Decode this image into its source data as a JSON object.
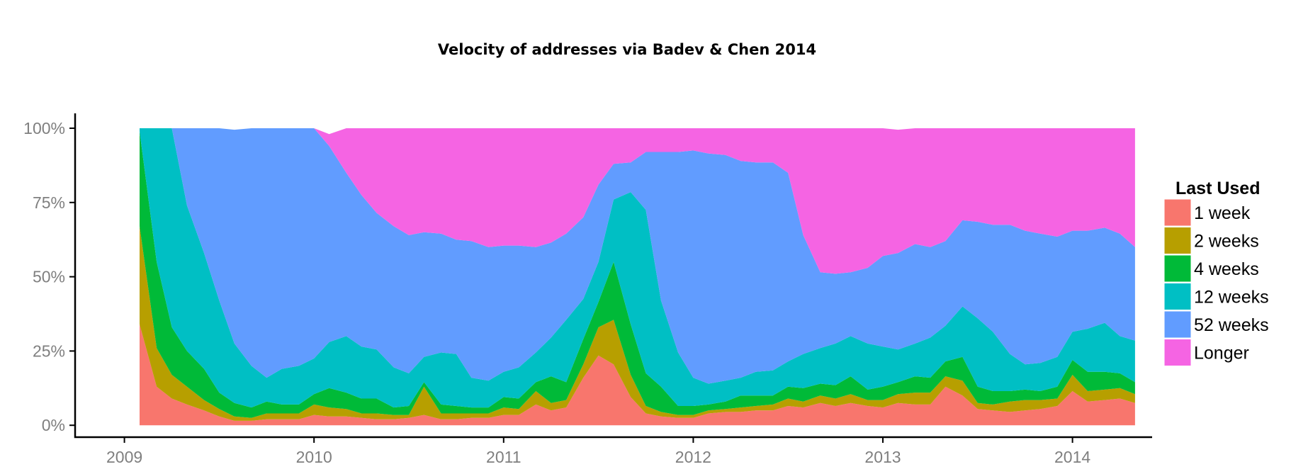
{
  "chart_data": {
    "type": "area",
    "title": "Velocity of addresses via Badev & Chen 2014",
    "xlabel": "",
    "ylabel": "",
    "x_ticks": [
      "2009",
      "2010",
      "2011",
      "2012",
      "2013",
      "2014"
    ],
    "y_ticks": [
      "0%",
      "25%",
      "50%",
      "75%",
      "100%"
    ],
    "xlim": [
      2008.74,
      2014.42
    ],
    "ylim": [
      -0.04,
      1.05
    ],
    "grid": false,
    "legend": {
      "title": "Last Used",
      "position": "right"
    },
    "colors": {
      "1 week": "#f8766d",
      "2 weeks": "#b79f00",
      "4 weeks": "#00ba38",
      "12 weeks": "#00bfc4",
      "52 weeks": "#619cff",
      "Longer": "#f564e3"
    },
    "x": [
      2009.08,
      2009.17,
      2009.25,
      2009.33,
      2009.42,
      2009.5,
      2009.58,
      2009.67,
      2009.75,
      2009.83,
      2009.92,
      2010.0,
      2010.08,
      2010.17,
      2010.25,
      2010.33,
      2010.42,
      2010.5,
      2010.58,
      2010.67,
      2010.75,
      2010.83,
      2010.92,
      2011.0,
      2011.08,
      2011.17,
      2011.25,
      2011.33,
      2011.42,
      2011.5,
      2011.58,
      2011.67,
      2011.75,
      2011.83,
      2011.92,
      2012.0,
      2012.08,
      2012.17,
      2012.25,
      2012.33,
      2012.42,
      2012.5,
      2012.58,
      2012.67,
      2012.75,
      2012.83,
      2012.92,
      2013.0,
      2013.08,
      2013.17,
      2013.25,
      2013.33,
      2013.42,
      2013.5,
      2013.58,
      2013.67,
      2013.75,
      2013.83,
      2013.92,
      2014.0,
      2014.08,
      2014.17,
      2014.25,
      2014.33
    ],
    "series": [
      {
        "name": "1 week",
        "values": [
          0.34,
          0.13,
          0.09,
          0.07,
          0.05,
          0.03,
          0.015,
          0.015,
          0.02,
          0.02,
          0.02,
          0.035,
          0.03,
          0.03,
          0.025,
          0.02,
          0.02,
          0.025,
          0.035,
          0.02,
          0.02,
          0.025,
          0.025,
          0.035,
          0.035,
          0.07,
          0.05,
          0.06,
          0.16,
          0.235,
          0.205,
          0.095,
          0.04,
          0.03,
          0.025,
          0.025,
          0.04,
          0.045,
          0.045,
          0.05,
          0.05,
          0.065,
          0.06,
          0.075,
          0.065,
          0.075,
          0.065,
          0.06,
          0.075,
          0.07,
          0.07,
          0.13,
          0.1,
          0.055,
          0.05,
          0.045,
          0.05,
          0.055,
          0.065,
          0.115,
          0.08,
          0.085,
          0.09,
          0.075
        ]
      },
      {
        "name": "2 weeks",
        "values": [
          0.33,
          0.13,
          0.08,
          0.06,
          0.035,
          0.025,
          0.015,
          0.01,
          0.02,
          0.02,
          0.02,
          0.035,
          0.03,
          0.025,
          0.015,
          0.02,
          0.015,
          0.01,
          0.095,
          0.02,
          0.02,
          0.015,
          0.015,
          0.025,
          0.02,
          0.045,
          0.025,
          0.025,
          0.045,
          0.095,
          0.15,
          0.075,
          0.025,
          0.015,
          0.01,
          0.01,
          0.01,
          0.01,
          0.015,
          0.015,
          0.02,
          0.025,
          0.02,
          0.025,
          0.025,
          0.03,
          0.02,
          0.025,
          0.03,
          0.04,
          0.04,
          0.035,
          0.05,
          0.02,
          0.02,
          0.035,
          0.035,
          0.03,
          0.025,
          0.055,
          0.035,
          0.035,
          0.035,
          0.03
        ]
      },
      {
        "name": "4 weeks",
        "values": [
          0.32,
          0.29,
          0.16,
          0.12,
          0.105,
          0.055,
          0.045,
          0.035,
          0.04,
          0.03,
          0.03,
          0.035,
          0.065,
          0.055,
          0.05,
          0.05,
          0.025,
          0.03,
          0.015,
          0.03,
          0.025,
          0.02,
          0.02,
          0.035,
          0.035,
          0.03,
          0.09,
          0.06,
          0.085,
          0.085,
          0.195,
          0.17,
          0.11,
          0.085,
          0.03,
          0.03,
          0.02,
          0.025,
          0.04,
          0.035,
          0.03,
          0.04,
          0.045,
          0.04,
          0.045,
          0.06,
          0.035,
          0.045,
          0.04,
          0.055,
          0.05,
          0.05,
          0.08,
          0.055,
          0.045,
          0.035,
          0.035,
          0.03,
          0.04,
          0.05,
          0.065,
          0.06,
          0.05,
          0.04
        ]
      },
      {
        "name": "12 weeks",
        "values": [
          0.01,
          0.45,
          0.67,
          0.49,
          0.39,
          0.31,
          0.2,
          0.14,
          0.08,
          0.12,
          0.13,
          0.12,
          0.155,
          0.19,
          0.175,
          0.165,
          0.135,
          0.11,
          0.085,
          0.175,
          0.175,
          0.1,
          0.09,
          0.085,
          0.105,
          0.1,
          0.13,
          0.21,
          0.135,
          0.135,
          0.21,
          0.445,
          0.55,
          0.29,
          0.18,
          0.095,
          0.07,
          0.07,
          0.06,
          0.08,
          0.085,
          0.085,
          0.115,
          0.12,
          0.14,
          0.135,
          0.155,
          0.135,
          0.11,
          0.11,
          0.135,
          0.12,
          0.17,
          0.23,
          0.2,
          0.125,
          0.085,
          0.095,
          0.1,
          0.095,
          0.145,
          0.165,
          0.125,
          0.14
        ]
      },
      {
        "name": "52 weeks",
        "values": [
          0.0,
          0.0,
          0.0,
          0.29,
          0.43,
          0.58,
          0.72,
          0.8,
          0.84,
          0.81,
          0.8,
          0.775,
          0.66,
          0.55,
          0.51,
          0.46,
          0.475,
          0.465,
          0.42,
          0.4,
          0.385,
          0.46,
          0.45,
          0.425,
          0.41,
          0.355,
          0.32,
          0.29,
          0.275,
          0.26,
          0.12,
          0.1,
          0.195,
          0.5,
          0.675,
          0.765,
          0.775,
          0.76,
          0.73,
          0.705,
          0.7,
          0.635,
          0.4,
          0.255,
          0.235,
          0.215,
          0.255,
          0.305,
          0.325,
          0.335,
          0.305,
          0.285,
          0.29,
          0.325,
          0.36,
          0.435,
          0.45,
          0.435,
          0.405,
          0.34,
          0.33,
          0.32,
          0.345,
          0.315
        ]
      },
      {
        "name": "Longer",
        "values": [
          0.0,
          0.0,
          0.0,
          0.0,
          0.0,
          0.0,
          0.0,
          0.0,
          0.0,
          0.0,
          0.0,
          0.0,
          0.04,
          0.15,
          0.225,
          0.295,
          0.33,
          0.36,
          0.35,
          0.355,
          0.375,
          0.38,
          0.4,
          0.395,
          0.395,
          0.4,
          0.385,
          0.355,
          0.3,
          0.19,
          0.12,
          0.115,
          0.08,
          0.08,
          0.08,
          0.075,
          0.085,
          0.09,
          0.11,
          0.115,
          0.115,
          0.15,
          0.36,
          0.485,
          0.49,
          0.485,
          0.47,
          0.43,
          0.415,
          0.39,
          0.4,
          0.38,
          0.31,
          0.315,
          0.325,
          0.325,
          0.345,
          0.355,
          0.365,
          0.345,
          0.345,
          0.335,
          0.355,
          0.4
        ]
      }
    ]
  }
}
